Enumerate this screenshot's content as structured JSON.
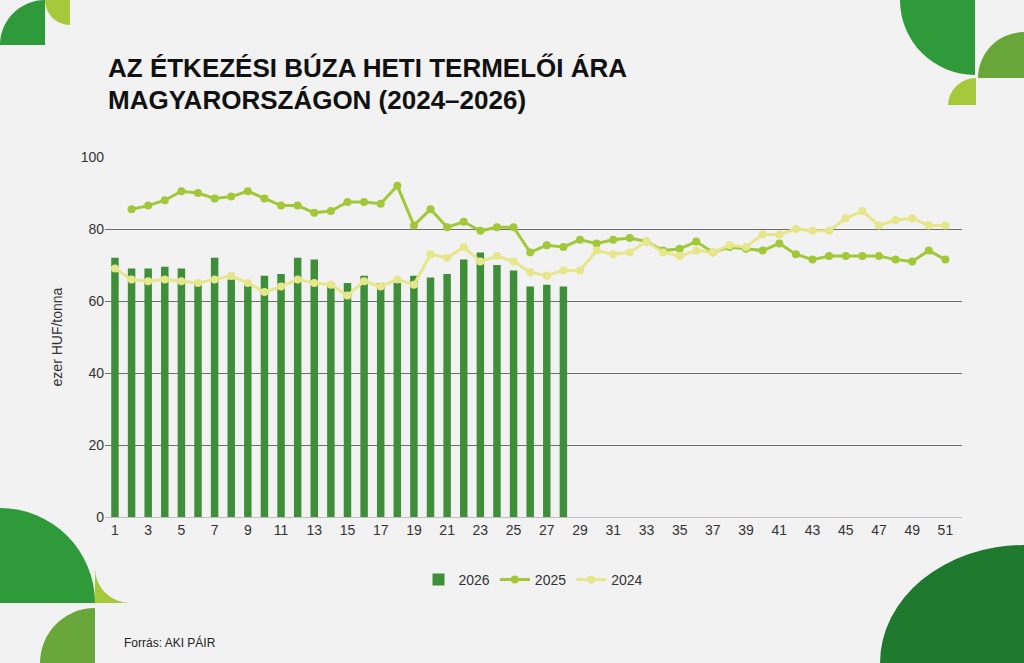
{
  "chart_data": {
    "type": "combo",
    "title": "AZ ÉTKEZÉSI BÚZA HETI TERMELŐI ÁRA MAGYARORSZÁGON (2024–2026)",
    "y_label": "ezer HUF/tonna",
    "source": "Forrás: AKI PÁIR",
    "x": [
      1,
      2,
      3,
      4,
      5,
      6,
      7,
      8,
      9,
      10,
      11,
      12,
      13,
      14,
      15,
      16,
      17,
      18,
      19,
      20,
      21,
      22,
      23,
      24,
      25,
      26,
      27,
      28,
      29,
      30,
      31,
      32,
      33,
      34,
      35,
      36,
      37,
      38,
      39,
      40,
      41,
      42,
      43,
      44,
      45,
      46,
      47,
      48,
      49,
      50,
      51
    ],
    "xlim": [
      0.4,
      52
    ],
    "xticks": [
      1,
      3,
      5,
      7,
      9,
      11,
      13,
      15,
      17,
      19,
      21,
      23,
      25,
      27,
      29,
      31,
      33,
      35,
      37,
      39,
      41,
      43,
      45,
      47,
      49,
      51
    ],
    "ylim": [
      0,
      100
    ],
    "yticks": [
      0,
      20,
      40,
      60,
      80,
      100
    ],
    "grid": true,
    "legend": "bottom",
    "series": [
      {
        "name": "2026",
        "type": "bar",
        "color": "#3f8f3a",
        "values": [
          72,
          69,
          69,
          69.5,
          69,
          65,
          72,
          66,
          65,
          67,
          67.5,
          72,
          71.5,
          65,
          65,
          67,
          65,
          65,
          67,
          66.5,
          67.5,
          71.5,
          73.5,
          70,
          68.5,
          64,
          64.5,
          64,
          null,
          null,
          null,
          null,
          null,
          null,
          null,
          null,
          null,
          null,
          null,
          null,
          null,
          null,
          null,
          null,
          null,
          null,
          null,
          null,
          null,
          null,
          null
        ]
      },
      {
        "name": "2025",
        "type": "line",
        "color": "#a2c83a",
        "marker": "circle",
        "values": [
          null,
          85.5,
          86.5,
          88,
          90.5,
          90,
          88.5,
          89,
          90.5,
          88.5,
          86.5,
          86.5,
          84.5,
          85,
          87.5,
          87.5,
          87,
          92,
          81,
          85.5,
          80.5,
          82,
          79.5,
          80.5,
          80.5,
          73.5,
          75.5,
          75,
          77,
          76,
          77,
          77.5,
          76.5,
          74,
          74.5,
          76.5,
          73.5,
          75,
          74.5,
          74,
          76,
          73,
          71.5,
          72.5,
          72.5,
          72.5,
          72.5,
          71.5,
          71,
          74,
          71.5
        ]
      },
      {
        "name": "2024",
        "type": "line",
        "color": "#e6e68a",
        "marker": "circle",
        "values": [
          69,
          66,
          65.5,
          66,
          65.5,
          65,
          66,
          67,
          65,
          62.5,
          64,
          66,
          65,
          64.5,
          61.5,
          65.5,
          64,
          66,
          64.5,
          73,
          72,
          75,
          71,
          72.5,
          71,
          68,
          67,
          68.5,
          68.5,
          74,
          73,
          73.5,
          76.5,
          73.5,
          72.5,
          74,
          73.5,
          75.5,
          75,
          78.5,
          78.5,
          80,
          79.5,
          79.5,
          83,
          85,
          81,
          82.5,
          83,
          81,
          81
        ]
      }
    ]
  }
}
